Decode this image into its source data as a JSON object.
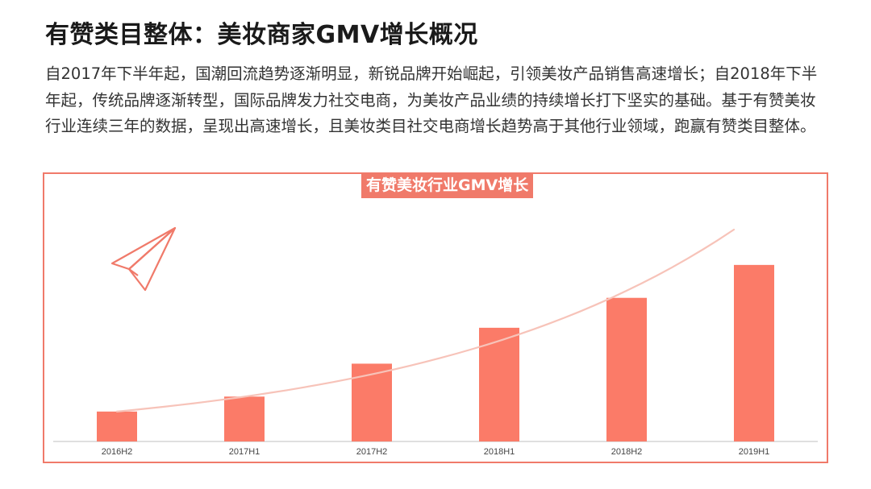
{
  "page": {
    "title": "有赞类目整体：美妆商家GMV增长概况",
    "intro": "自2017年下半年起，国潮回流趋势逐渐明显，新锐品牌开始崛起，引领美妆产品销售高速增长；自2018年下半年起，传统品牌逐渐转型，国际品牌发力社交电商，为美妆产品业绩的持续增长打下坚实的基础。基于有赞美妆行业连续三年的数据，呈现出高速增长，且美妆类目社交电商增长趋势高于其他行业领域，跑赢有赞类目整体。"
  },
  "icons": [
    "paper-plane-icon"
  ],
  "colors": {
    "accent": "#f07a6a",
    "bar": "#fb7b68",
    "trend": "#f7c3b9",
    "axis": "#cccccc"
  },
  "chart_data": {
    "type": "bar",
    "title": "有赞美妆行业GMV增长",
    "categories": [
      "2016H2",
      "2017H1",
      "2017H2",
      "2018H1",
      "2018H2",
      "2019H1"
    ],
    "values": [
      1.0,
      1.5,
      2.6,
      3.8,
      4.8,
      5.9
    ],
    "ylim": [
      0,
      7
    ],
    "trendline": true,
    "grid": false,
    "legend": "none"
  }
}
